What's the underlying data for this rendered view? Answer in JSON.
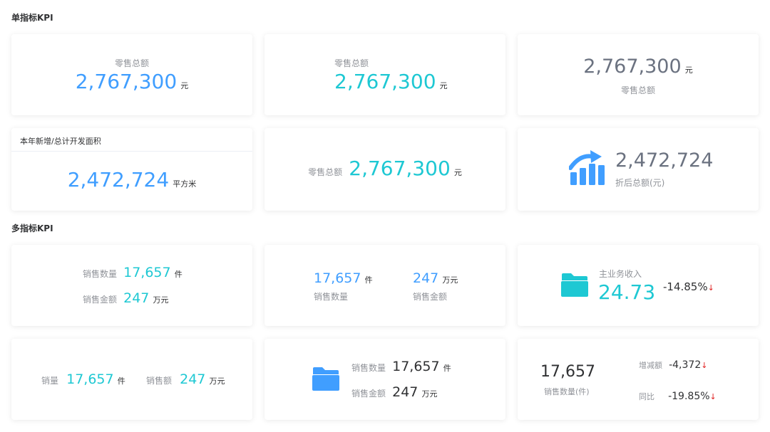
{
  "section_single": "单指标KPI",
  "section_multi": "多指标KPI",
  "c1": {
    "label": "零售总额",
    "value": "2,767,300",
    "unit": "元"
  },
  "c2": {
    "label": "零售总额",
    "value": "2,767,300",
    "unit": "元"
  },
  "c3": {
    "label": "零售总额",
    "value": "2,767,300",
    "unit": "元"
  },
  "c4": {
    "header": "本年新增/总计开发面积",
    "value": "2,472,724",
    "unit": "平方米"
  },
  "c5": {
    "label": "零售总额",
    "value": "2,767,300",
    "unit": "元"
  },
  "c6": {
    "icon": "growth-chart-icon",
    "value": "2,472,724",
    "label": "折后总额(元)"
  },
  "m1": {
    "row1_label": "销售数量",
    "row1_value": "17,657",
    "row1_unit": "件",
    "row2_label": "销售金额",
    "row2_value": "247",
    "row2_unit": "万元"
  },
  "m2": {
    "a_value": "17,657",
    "a_unit": "件",
    "a_label": "销售数量",
    "b_value": "247",
    "b_unit": "万元",
    "b_label": "销售金额"
  },
  "m3": {
    "icon": "folder-icon",
    "label": "主业务收入",
    "value": "24.73",
    "change": "-14.85%"
  },
  "m4": {
    "a_label": "销量",
    "a_value": "17,657",
    "a_unit": "件",
    "b_label": "销售额",
    "b_value": "247",
    "b_unit": "万元"
  },
  "m5": {
    "icon": "folder-icon",
    "row1_label": "销售数量",
    "row1_value": "17,657",
    "row1_unit": "件",
    "row2_label": "销售金额",
    "row2_value": "247",
    "row2_unit": "万元"
  },
  "m6": {
    "value": "17,657",
    "label": "销售数量(件)",
    "r1_label": "增减额",
    "r1_value": "-4,372",
    "r2_label": "同比",
    "r2_value": "-19.85%"
  },
  "colors": {
    "blue": "#409eff",
    "cyan": "#1ec8d3",
    "gray": "#6b7280",
    "down": "#e02020"
  }
}
